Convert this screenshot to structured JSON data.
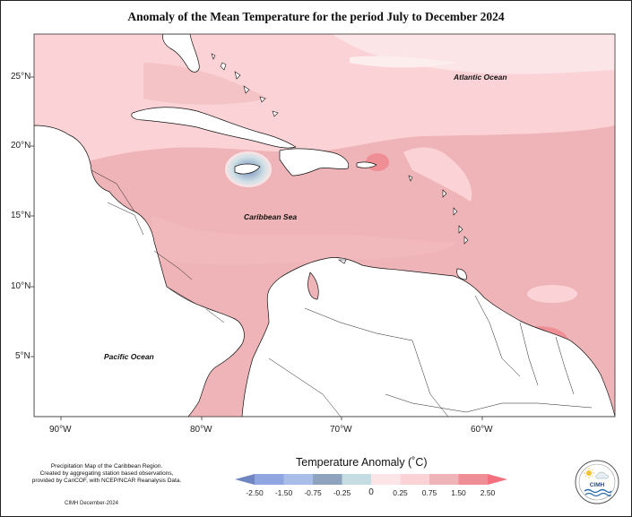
{
  "title": "Anomaly of the Mean Temperature for the period July to December 2024",
  "axes": {
    "lat_labels": [
      "25°N",
      "20°N",
      "15°N",
      "10°N",
      "5°N"
    ],
    "lon_labels": [
      "90°W",
      "80°W",
      "70°W",
      "60°W"
    ]
  },
  "labels": {
    "atlantic": "Atlantic Ocean",
    "caribbean": "Caribbean Sea",
    "pacific": "Pacific Ocean"
  },
  "legend": {
    "title": "Temperature Anomaly (˚C)",
    "ticks": [
      "-2.50",
      "-1.50",
      "-0.75",
      "-0.25",
      "0",
      "0.25",
      "0.75",
      "1.50",
      "2.50"
    ],
    "colors": [
      "#6f86c2",
      "#8fa6e0",
      "#a9bde9",
      "#8ea3bd",
      "#c4dde3",
      "#fce5e6",
      "#fbd3d6",
      "#efb4b7",
      "#f08e95",
      "#f4707e"
    ]
  },
  "credit": {
    "line1": "Precipitation Map of the Caribbean Region.",
    "line2": "Created by aggregating station based observations,",
    "line3": "provided by CariCOF, with NCEP/NCAR Reanalysis Data.",
    "date": "CIMH December-2024"
  },
  "logo": {
    "text": "CIMH"
  }
}
